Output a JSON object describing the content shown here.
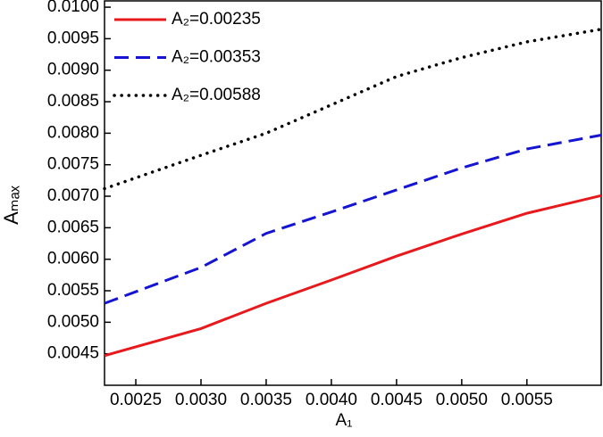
{
  "chart_data": {
    "type": "line",
    "x_label": "A₁",
    "y_label": "Aₘₐₓ",
    "x": [
      0.00226,
      0.003,
      0.0035,
      0.004,
      0.0045,
      0.005,
      0.0055,
      0.00607
    ],
    "series": [
      {
        "name": "A₂=0.00235",
        "color": "#e8191c",
        "style": "solid",
        "values": [
          0.00447,
          0.0049,
          0.0053,
          0.00567,
          0.00605,
          0.0064,
          0.00673,
          0.00701
        ]
      },
      {
        "name": "A₂=0.00353",
        "color": "#1414d2",
        "style": "dashed",
        "values": [
          0.0053,
          0.00587,
          0.00641,
          0.00675,
          0.0071,
          0.00745,
          0.00775,
          0.00797
        ]
      },
      {
        "name": "A₂=0.00588",
        "color": "#000000",
        "style": "dotted",
        "values": [
          0.00712,
          0.00765,
          0.008,
          0.00845,
          0.0089,
          0.0092,
          0.00945,
          0.00965
        ]
      }
    ],
    "xlim": [
      0.00226,
      0.00607
    ],
    "ylim": [
      0.004,
      0.0101
    ],
    "xticks": [
      0.0025,
      {
        "value": 0.003,
        "label": "0.0030"
      },
      0.0035,
      {
        "value": 0.004,
        "label": "0.0040"
      },
      0.0045,
      {
        "value": 0.005,
        "label": "0.0050"
      },
      0.0055
    ],
    "yticks": [
      0.0045,
      {
        "value": 0.005,
        "label": "0.0050"
      },
      0.0055,
      {
        "value": 0.006,
        "label": "0.0060"
      },
      0.0065,
      {
        "value": 0.007,
        "label": "0.0070"
      },
      0.0075,
      {
        "value": 0.008,
        "label": "0.0080"
      },
      0.0085,
      {
        "value": 0.009,
        "label": "0.0090"
      },
      0.0095,
      {
        "value": 0.01,
        "label": "0.0100"
      }
    ],
    "legend": "upper-left",
    "grid": false
  }
}
